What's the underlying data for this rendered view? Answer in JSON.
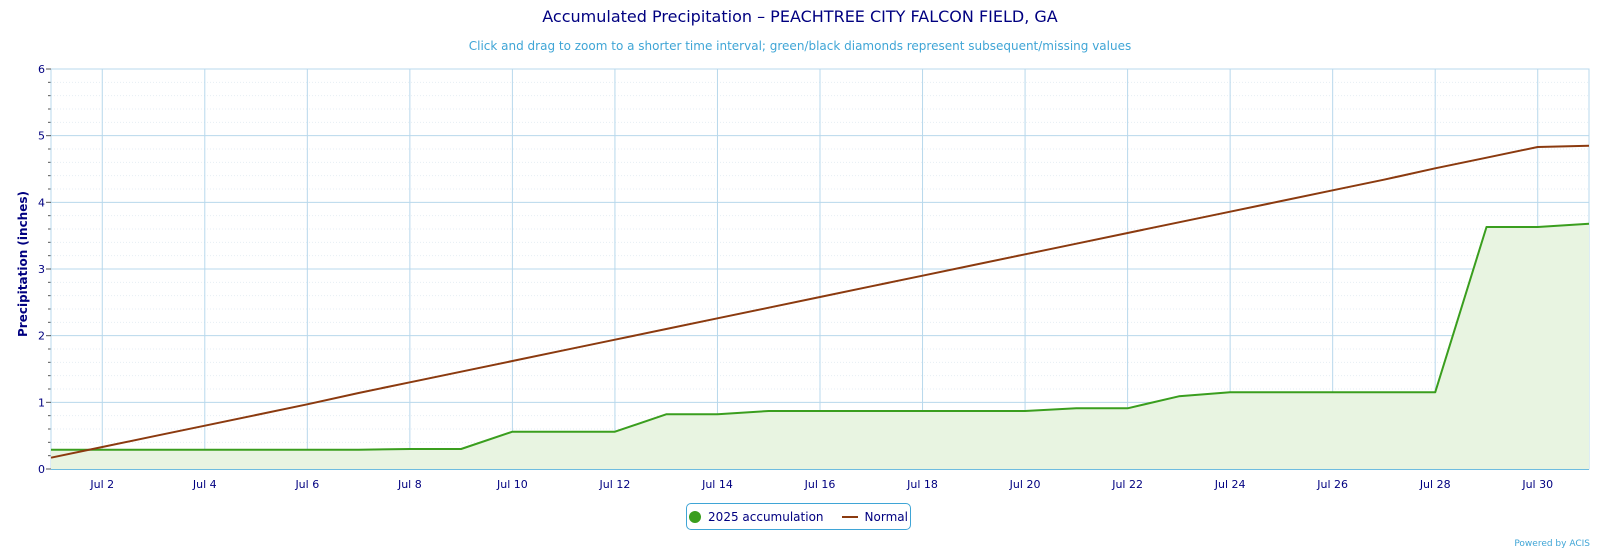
{
  "title": "Accumulated Precipitation – PEACHTREE CITY FALCON FIELD, GA",
  "subtitle": "Click and drag to zoom to a shorter time interval; green/black diamonds represent subsequent/missing values",
  "credits": "Powered by ACIS",
  "colors": {
    "accumulation": "#3a9e1e",
    "accumulation_fill": "#e8f4e1",
    "normal": "#8b3a0f",
    "grid": "#b8d8ec",
    "axis": "#3fa5d6",
    "text": "#000080"
  },
  "chart_data": {
    "type": "line",
    "ylabel": "Precipitation (inches)",
    "ylim": [
      0,
      6
    ],
    "yticks": [
      0,
      1,
      2,
      3,
      4,
      5,
      6
    ],
    "xlim": [
      1,
      31
    ],
    "xticks": [
      {
        "day": 2,
        "label": "Jul 2"
      },
      {
        "day": 4,
        "label": "Jul 4"
      },
      {
        "day": 6,
        "label": "Jul 6"
      },
      {
        "day": 8,
        "label": "Jul 8"
      },
      {
        "day": 10,
        "label": "Jul 10"
      },
      {
        "day": 12,
        "label": "Jul 12"
      },
      {
        "day": 14,
        "label": "Jul 14"
      },
      {
        "day": 16,
        "label": "Jul 16"
      },
      {
        "day": 18,
        "label": "Jul 18"
      },
      {
        "day": 20,
        "label": "Jul 20"
      },
      {
        "day": 22,
        "label": "Jul 22"
      },
      {
        "day": 24,
        "label": "Jul 24"
      },
      {
        "day": 26,
        "label": "Jul 26"
      },
      {
        "day": 28,
        "label": "Jul 28"
      },
      {
        "day": 30,
        "label": "Jul 30"
      }
    ],
    "grid": true,
    "legend_position": "bottom-center",
    "series": [
      {
        "name": "2025 accumulation",
        "area": true,
        "x": [
          1,
          2,
          3,
          4,
          5,
          6,
          7,
          8,
          9,
          10,
          11,
          12,
          13,
          14,
          15,
          16,
          17,
          18,
          19,
          20,
          21,
          22,
          23,
          24,
          25,
          26,
          27,
          28,
          29,
          30,
          31
        ],
        "y": [
          0.29,
          0.29,
          0.29,
          0.29,
          0.29,
          0.29,
          0.29,
          0.3,
          0.3,
          0.56,
          0.56,
          0.56,
          0.82,
          0.82,
          0.87,
          0.87,
          0.87,
          0.87,
          0.87,
          0.87,
          0.91,
          0.91,
          1.09,
          1.15,
          1.15,
          1.15,
          1.15,
          1.15,
          3.63,
          3.63,
          3.68
        ]
      },
      {
        "name": "Normal",
        "area": false,
        "x": [
          1,
          2,
          3,
          4,
          5,
          6,
          7,
          8,
          9,
          10,
          11,
          12,
          13,
          14,
          15,
          16,
          17,
          18,
          19,
          20,
          21,
          22,
          23,
          24,
          25,
          26,
          27,
          28,
          29,
          30,
          31
        ],
        "y": [
          0.17,
          0.33,
          0.49,
          0.65,
          0.81,
          0.97,
          1.14,
          1.3,
          1.46,
          1.62,
          1.78,
          1.94,
          2.1,
          2.26,
          2.42,
          2.58,
          2.74,
          2.9,
          3.06,
          3.22,
          3.38,
          3.54,
          3.7,
          3.86,
          4.02,
          4.18,
          4.34,
          4.51,
          4.67,
          4.83,
          4.85
        ]
      }
    ]
  }
}
